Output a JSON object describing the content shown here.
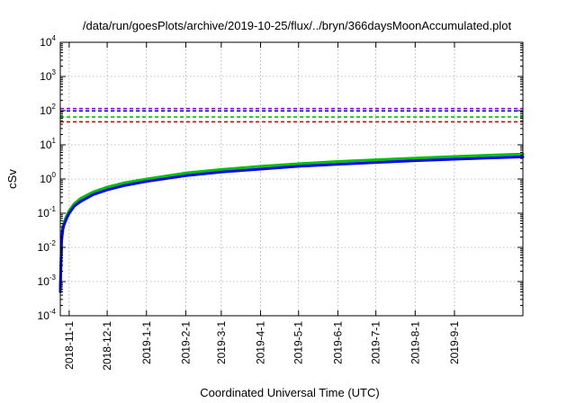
{
  "chart_data": {
    "type": "line",
    "title": "/data/run/goesPlots/archive/2019-10-25/flux/../bryn/366daysMoonAccumulated.plot",
    "xlabel": "Coordinated Universal Time (UTC)",
    "ylabel": "cSv",
    "y_scale": "log",
    "ylim": [
      0.0001,
      10000
    ],
    "xlim": [
      "2018-10-25",
      "2019-10-25"
    ],
    "grid": true,
    "y_ticks": [
      {
        "base": "10",
        "exp": "-4",
        "value": 0.0001
      },
      {
        "base": "10",
        "exp": "-3",
        "value": 0.001
      },
      {
        "base": "10",
        "exp": "-2",
        "value": 0.01
      },
      {
        "base": "10",
        "exp": "-1",
        "value": 0.1
      },
      {
        "base": "10",
        "exp": "0",
        "value": 1
      },
      {
        "base": "10",
        "exp": "1",
        "value": 10
      },
      {
        "base": "10",
        "exp": "2",
        "value": 100
      },
      {
        "base": "10",
        "exp": "3",
        "value": 1000
      },
      {
        "base": "10",
        "exp": "4",
        "value": 10000
      }
    ],
    "x_ticks": [
      "2018-11-1",
      "2018-12-1",
      "2019-1-1",
      "2019-2-1",
      "2019-3-1",
      "2019-4-1",
      "2019-5-1",
      "2019-6-1",
      "2019-7-1",
      "2019-8-1",
      "2019-9-1"
    ],
    "reference_lines": [
      {
        "value": 115,
        "color": "#9400d3",
        "style": "dashed"
      },
      {
        "value": 98,
        "color": "#0000ff",
        "style": "dashed"
      },
      {
        "value": 65,
        "color": "#00c000",
        "style": "dashed"
      },
      {
        "value": 47,
        "color": "#e00000",
        "style": "dashed"
      }
    ],
    "series": [
      {
        "color": "#00c000",
        "x": [
          "2018-10-25",
          "2018-10-26",
          "2018-10-27",
          "2018-10-28",
          "2018-10-30",
          "2018-11-1",
          "2018-11-5",
          "2018-11-10",
          "2018-11-20",
          "2018-12-1",
          "2018-12-15",
          "2019-1-1",
          "2019-2-1",
          "2019-3-1",
          "2019-4-1",
          "2019-5-1",
          "2019-6-1",
          "2019-7-1",
          "2019-8-1",
          "2019-9-1",
          "2019-10-1",
          "2019-10-25"
        ],
        "y": [
          0.0006,
          0.018,
          0.04,
          0.055,
          0.085,
          0.12,
          0.19,
          0.27,
          0.42,
          0.58,
          0.78,
          1.0,
          1.5,
          1.9,
          2.35,
          2.8,
          3.25,
          3.65,
          4.1,
          4.55,
          5.0,
          5.35
        ]
      },
      {
        "color": "#0000ff",
        "x": [
          "2018-10-25",
          "2018-10-26",
          "2018-10-27",
          "2018-10-28",
          "2018-10-30",
          "2018-11-1",
          "2018-11-5",
          "2018-11-10",
          "2018-11-20",
          "2018-12-1",
          "2018-12-15",
          "2019-1-1",
          "2019-2-1",
          "2019-3-1",
          "2019-4-1",
          "2019-5-1",
          "2019-6-1",
          "2019-7-1",
          "2019-8-1",
          "2019-9-1",
          "2019-10-1",
          "2019-10-25"
        ],
        "y": [
          0.0005,
          0.015,
          0.033,
          0.046,
          0.07,
          0.1,
          0.16,
          0.22,
          0.35,
          0.48,
          0.65,
          0.85,
          1.25,
          1.6,
          1.95,
          2.35,
          2.7,
          3.05,
          3.45,
          3.8,
          4.15,
          4.45
        ]
      }
    ]
  }
}
